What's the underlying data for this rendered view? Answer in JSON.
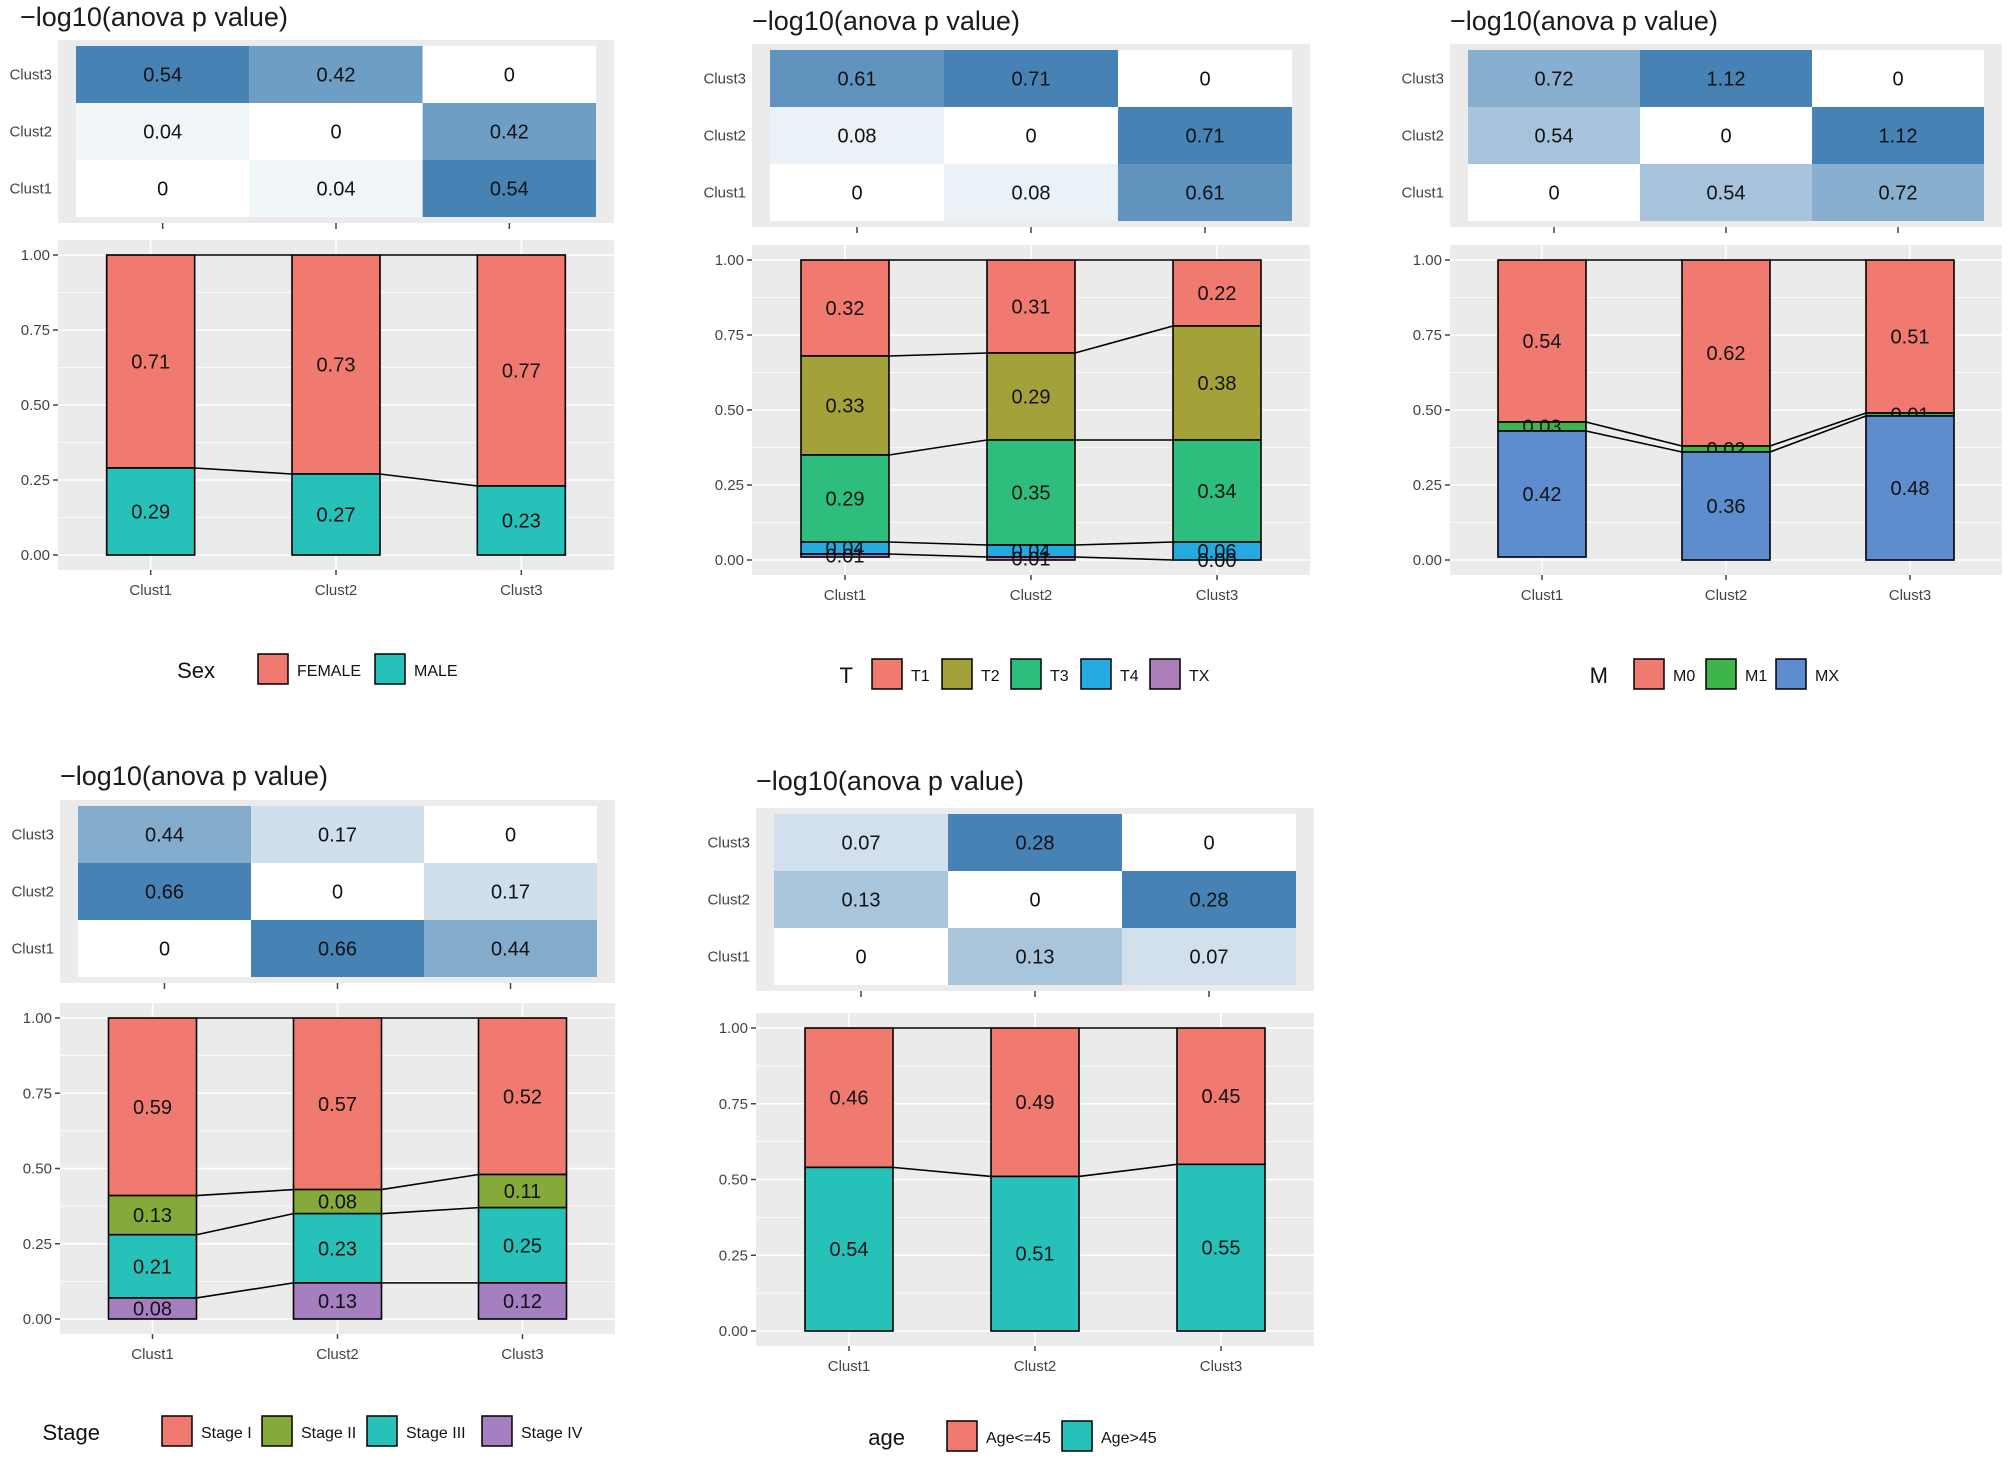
{
  "figure": {
    "panels": [
      {
        "id": "sex",
        "heatmap_title": "−log10(anova p value)",
        "clusters": [
          "Clust1",
          "Clust2",
          "Clust3"
        ],
        "matrix": [
          [
            "0",
            "0.04",
            "0.54"
          ],
          [
            "0.04",
            "0",
            "0.42"
          ],
          [
            "0.54",
            "0.42",
            "0"
          ]
        ],
        "matrix_values": [
          [
            0,
            0.04,
            0.54
          ],
          [
            0.04,
            0,
            0.42
          ],
          [
            0.54,
            0.42,
            0
          ]
        ],
        "legend_title": "Sex",
        "categories": [
          "FEMALE",
          "MALE"
        ],
        "colors": [
          "#F07A70",
          "#26C1B9"
        ],
        "proportions": [
          [
            0.71,
            0.29
          ],
          [
            0.73,
            0.27
          ],
          [
            0.77,
            0.23
          ]
        ],
        "labels": [
          [
            "0.71",
            "0.29"
          ],
          [
            "0.73",
            "0.27"
          ],
          [
            "0.77",
            "0.23"
          ]
        ]
      },
      {
        "id": "T",
        "heatmap_title": "−log10(anova p value)",
        "clusters": [
          "Clust1",
          "Clust2",
          "Clust3"
        ],
        "matrix": [
          [
            "0",
            "0.08",
            "0.61"
          ],
          [
            "0.08",
            "0",
            "0.71"
          ],
          [
            "0.61",
            "0.71",
            "0"
          ]
        ],
        "matrix_values": [
          [
            0,
            0.08,
            0.61
          ],
          [
            0.08,
            0,
            0.71
          ],
          [
            0.61,
            0.71,
            0
          ]
        ],
        "legend_title": "T",
        "categories": [
          "T1",
          "T2",
          "T3",
          "T4",
          "TX"
        ],
        "colors": [
          "#F07A70",
          "#A3A23A",
          "#2DBE7E",
          "#24A9E0",
          "#AC7FBB"
        ],
        "proportions": [
          [
            0.32,
            0.33,
            0.29,
            0.04,
            0.01
          ],
          [
            0.31,
            0.29,
            0.35,
            0.04,
            0.01
          ],
          [
            0.22,
            0.38,
            0.34,
            0.06,
            0.0
          ]
        ],
        "labels": [
          [
            "0.32",
            "0.33",
            "0.29",
            "0.04",
            "0.01"
          ],
          [
            "0.31",
            "0.29",
            "0.35",
            "0.04",
            "0.01"
          ],
          [
            "0.22",
            "0.38",
            "0.34",
            "0.06",
            "0.00"
          ]
        ]
      },
      {
        "id": "M",
        "heatmap_title": "−log10(anova p value)",
        "clusters": [
          "Clust1",
          "Clust2",
          "Clust3"
        ],
        "matrix": [
          [
            "0",
            "0.54",
            "0.72"
          ],
          [
            "0.54",
            "0",
            "1.12"
          ],
          [
            "0.72",
            "1.12",
            "0"
          ]
        ],
        "matrix_values": [
          [
            0,
            0.54,
            0.72
          ],
          [
            0.54,
            0,
            1.12
          ],
          [
            0.72,
            1.12,
            0
          ]
        ],
        "legend_title": "M",
        "categories": [
          "M0",
          "M1",
          "MX"
        ],
        "colors": [
          "#F07A70",
          "#3DB54A",
          "#5E8DCF"
        ],
        "proportions": [
          [
            0.54,
            0.03,
            0.42
          ],
          [
            0.62,
            0.02,
            0.36
          ],
          [
            0.51,
            0.01,
            0.48
          ]
        ],
        "labels": [
          [
            "0.54",
            "0.03",
            "0.42"
          ],
          [
            "0.62",
            "0.02",
            "0.36"
          ],
          [
            "0.51",
            "0.01",
            "0.48"
          ]
        ]
      },
      {
        "id": "stage",
        "heatmap_title": "−log10(anova p value)",
        "clusters": [
          "Clust1",
          "Clust2",
          "Clust3"
        ],
        "matrix": [
          [
            "0",
            "0.66",
            "0.44"
          ],
          [
            "0.66",
            "0",
            "0.17"
          ],
          [
            "0.44",
            "0.17",
            "0"
          ]
        ],
        "matrix_values": [
          [
            0,
            0.66,
            0.44
          ],
          [
            0.66,
            0,
            0.17
          ],
          [
            0.44,
            0.17,
            0
          ]
        ],
        "legend_title": "Stage",
        "categories": [
          "Stage I",
          "Stage II",
          "Stage III",
          "Stage IV"
        ],
        "colors": [
          "#F07A70",
          "#85AA3A",
          "#26C1B9",
          "#A57FC0"
        ],
        "proportions": [
          [
            0.59,
            0.13,
            0.21,
            0.08
          ],
          [
            0.57,
            0.08,
            0.23,
            0.13
          ],
          [
            0.52,
            0.11,
            0.25,
            0.12
          ]
        ],
        "labels": [
          [
            "0.59",
            "0.13",
            "0.21",
            "0.08"
          ],
          [
            "0.57",
            "0.08",
            "0.23",
            "0.13"
          ],
          [
            "0.52",
            "0.11",
            "0.25",
            "0.12"
          ]
        ]
      },
      {
        "id": "age",
        "heatmap_title": "−log10(anova p value)",
        "clusters": [
          "Clust1",
          "Clust2",
          "Clust3"
        ],
        "matrix": [
          [
            "0",
            "0.13",
            "0.07"
          ],
          [
            "0.13",
            "0",
            "0.28"
          ],
          [
            "0.07",
            "0.28",
            "0"
          ]
        ],
        "matrix_values": [
          [
            0,
            0.13,
            0.07
          ],
          [
            0.13,
            0,
            0.28
          ],
          [
            0.07,
            0.28,
            0
          ]
        ],
        "legend_title": "age",
        "categories": [
          "Age<=45",
          "Age>45"
        ],
        "colors": [
          "#F07A70",
          "#26C1B9"
        ],
        "proportions": [
          [
            0.46,
            0.54
          ],
          [
            0.49,
            0.51
          ],
          [
            0.45,
            0.55
          ]
        ],
        "labels": [
          [
            "0.46",
            "0.54"
          ],
          [
            "0.49",
            "0.51"
          ],
          [
            "0.45",
            "0.55"
          ]
        ]
      }
    ],
    "y_ticks": [
      "0.00",
      "0.25",
      "0.50",
      "0.75",
      "1.00"
    ]
  },
  "chart_data": [
    {
      "type": "heatmap",
      "title": "−log10(anova p value)",
      "x": [
        "Clust1",
        "Clust2",
        "Clust3"
      ],
      "y": [
        "Clust1",
        "Clust2",
        "Clust3"
      ],
      "values": [
        [
          0,
          0.04,
          0.54
        ],
        [
          0.04,
          0,
          0.42
        ],
        [
          0.54,
          0.42,
          0
        ]
      ]
    },
    {
      "type": "bar",
      "stacked": true,
      "categories": [
        "Clust1",
        "Clust2",
        "Clust3"
      ],
      "legend_title": "Sex",
      "series": [
        {
          "name": "FEMALE",
          "values": [
            0.71,
            0.73,
            0.77
          ]
        },
        {
          "name": "MALE",
          "values": [
            0.29,
            0.27,
            0.23
          ]
        }
      ],
      "ylim": [
        0,
        1
      ]
    },
    {
      "type": "heatmap",
      "title": "−log10(anova p value)",
      "x": [
        "Clust1",
        "Clust2",
        "Clust3"
      ],
      "y": [
        "Clust1",
        "Clust2",
        "Clust3"
      ],
      "values": [
        [
          0,
          0.08,
          0.61
        ],
        [
          0.08,
          0,
          0.71
        ],
        [
          0.61,
          0.71,
          0
        ]
      ]
    },
    {
      "type": "bar",
      "stacked": true,
      "categories": [
        "Clust1",
        "Clust2",
        "Clust3"
      ],
      "legend_title": "T",
      "series": [
        {
          "name": "T1",
          "values": [
            0.32,
            0.31,
            0.22
          ]
        },
        {
          "name": "T2",
          "values": [
            0.33,
            0.29,
            0.38
          ]
        },
        {
          "name": "T3",
          "values": [
            0.29,
            0.35,
            0.34
          ]
        },
        {
          "name": "T4",
          "values": [
            0.04,
            0.04,
            0.06
          ]
        },
        {
          "name": "TX",
          "values": [
            0.01,
            0.01,
            0.0
          ]
        }
      ],
      "ylim": [
        0,
        1
      ]
    },
    {
      "type": "heatmap",
      "title": "−log10(anova p value)",
      "x": [
        "Clust1",
        "Clust2",
        "Clust3"
      ],
      "y": [
        "Clust1",
        "Clust2",
        "Clust3"
      ],
      "values": [
        [
          0,
          0.54,
          0.72
        ],
        [
          0.54,
          0,
          1.12
        ],
        [
          0.72,
          1.12,
          0
        ]
      ]
    },
    {
      "type": "bar",
      "stacked": true,
      "categories": [
        "Clust1",
        "Clust2",
        "Clust3"
      ],
      "legend_title": "M",
      "series": [
        {
          "name": "M0",
          "values": [
            0.54,
            0.62,
            0.51
          ]
        },
        {
          "name": "M1",
          "values": [
            0.03,
            0.02,
            0.01
          ]
        },
        {
          "name": "MX",
          "values": [
            0.42,
            0.36,
            0.48
          ]
        }
      ],
      "ylim": [
        0,
        1
      ]
    },
    {
      "type": "heatmap",
      "title": "−log10(anova p value)",
      "x": [
        "Clust1",
        "Clust2",
        "Clust3"
      ],
      "y": [
        "Clust1",
        "Clust2",
        "Clust3"
      ],
      "values": [
        [
          0,
          0.66,
          0.44
        ],
        [
          0.66,
          0,
          0.17
        ],
        [
          0.44,
          0.17,
          0
        ]
      ]
    },
    {
      "type": "bar",
      "stacked": true,
      "categories": [
        "Clust1",
        "Clust2",
        "Clust3"
      ],
      "legend_title": "Stage",
      "series": [
        {
          "name": "Stage I",
          "values": [
            0.59,
            0.57,
            0.52
          ]
        },
        {
          "name": "Stage II",
          "values": [
            0.13,
            0.08,
            0.11
          ]
        },
        {
          "name": "Stage III",
          "values": [
            0.21,
            0.23,
            0.25
          ]
        },
        {
          "name": "Stage IV",
          "values": [
            0.08,
            0.13,
            0.12
          ]
        }
      ],
      "ylim": [
        0,
        1
      ]
    },
    {
      "type": "heatmap",
      "title": "−log10(anova p value)",
      "x": [
        "Clust1",
        "Clust2",
        "Clust3"
      ],
      "y": [
        "Clust1",
        "Clust2",
        "Clust3"
      ],
      "values": [
        [
          0,
          0.13,
          0.07
        ],
        [
          0.13,
          0,
          0.28
        ],
        [
          0.07,
          0.28,
          0
        ]
      ]
    },
    {
      "type": "bar",
      "stacked": true,
      "categories": [
        "Clust1",
        "Clust2",
        "Clust3"
      ],
      "legend_title": "age",
      "series": [
        {
          "name": "Age<=45",
          "values": [
            0.46,
            0.49,
            0.45
          ]
        },
        {
          "name": "Age>45",
          "values": [
            0.54,
            0.51,
            0.55
          ]
        }
      ],
      "ylim": [
        0,
        1
      ]
    }
  ]
}
